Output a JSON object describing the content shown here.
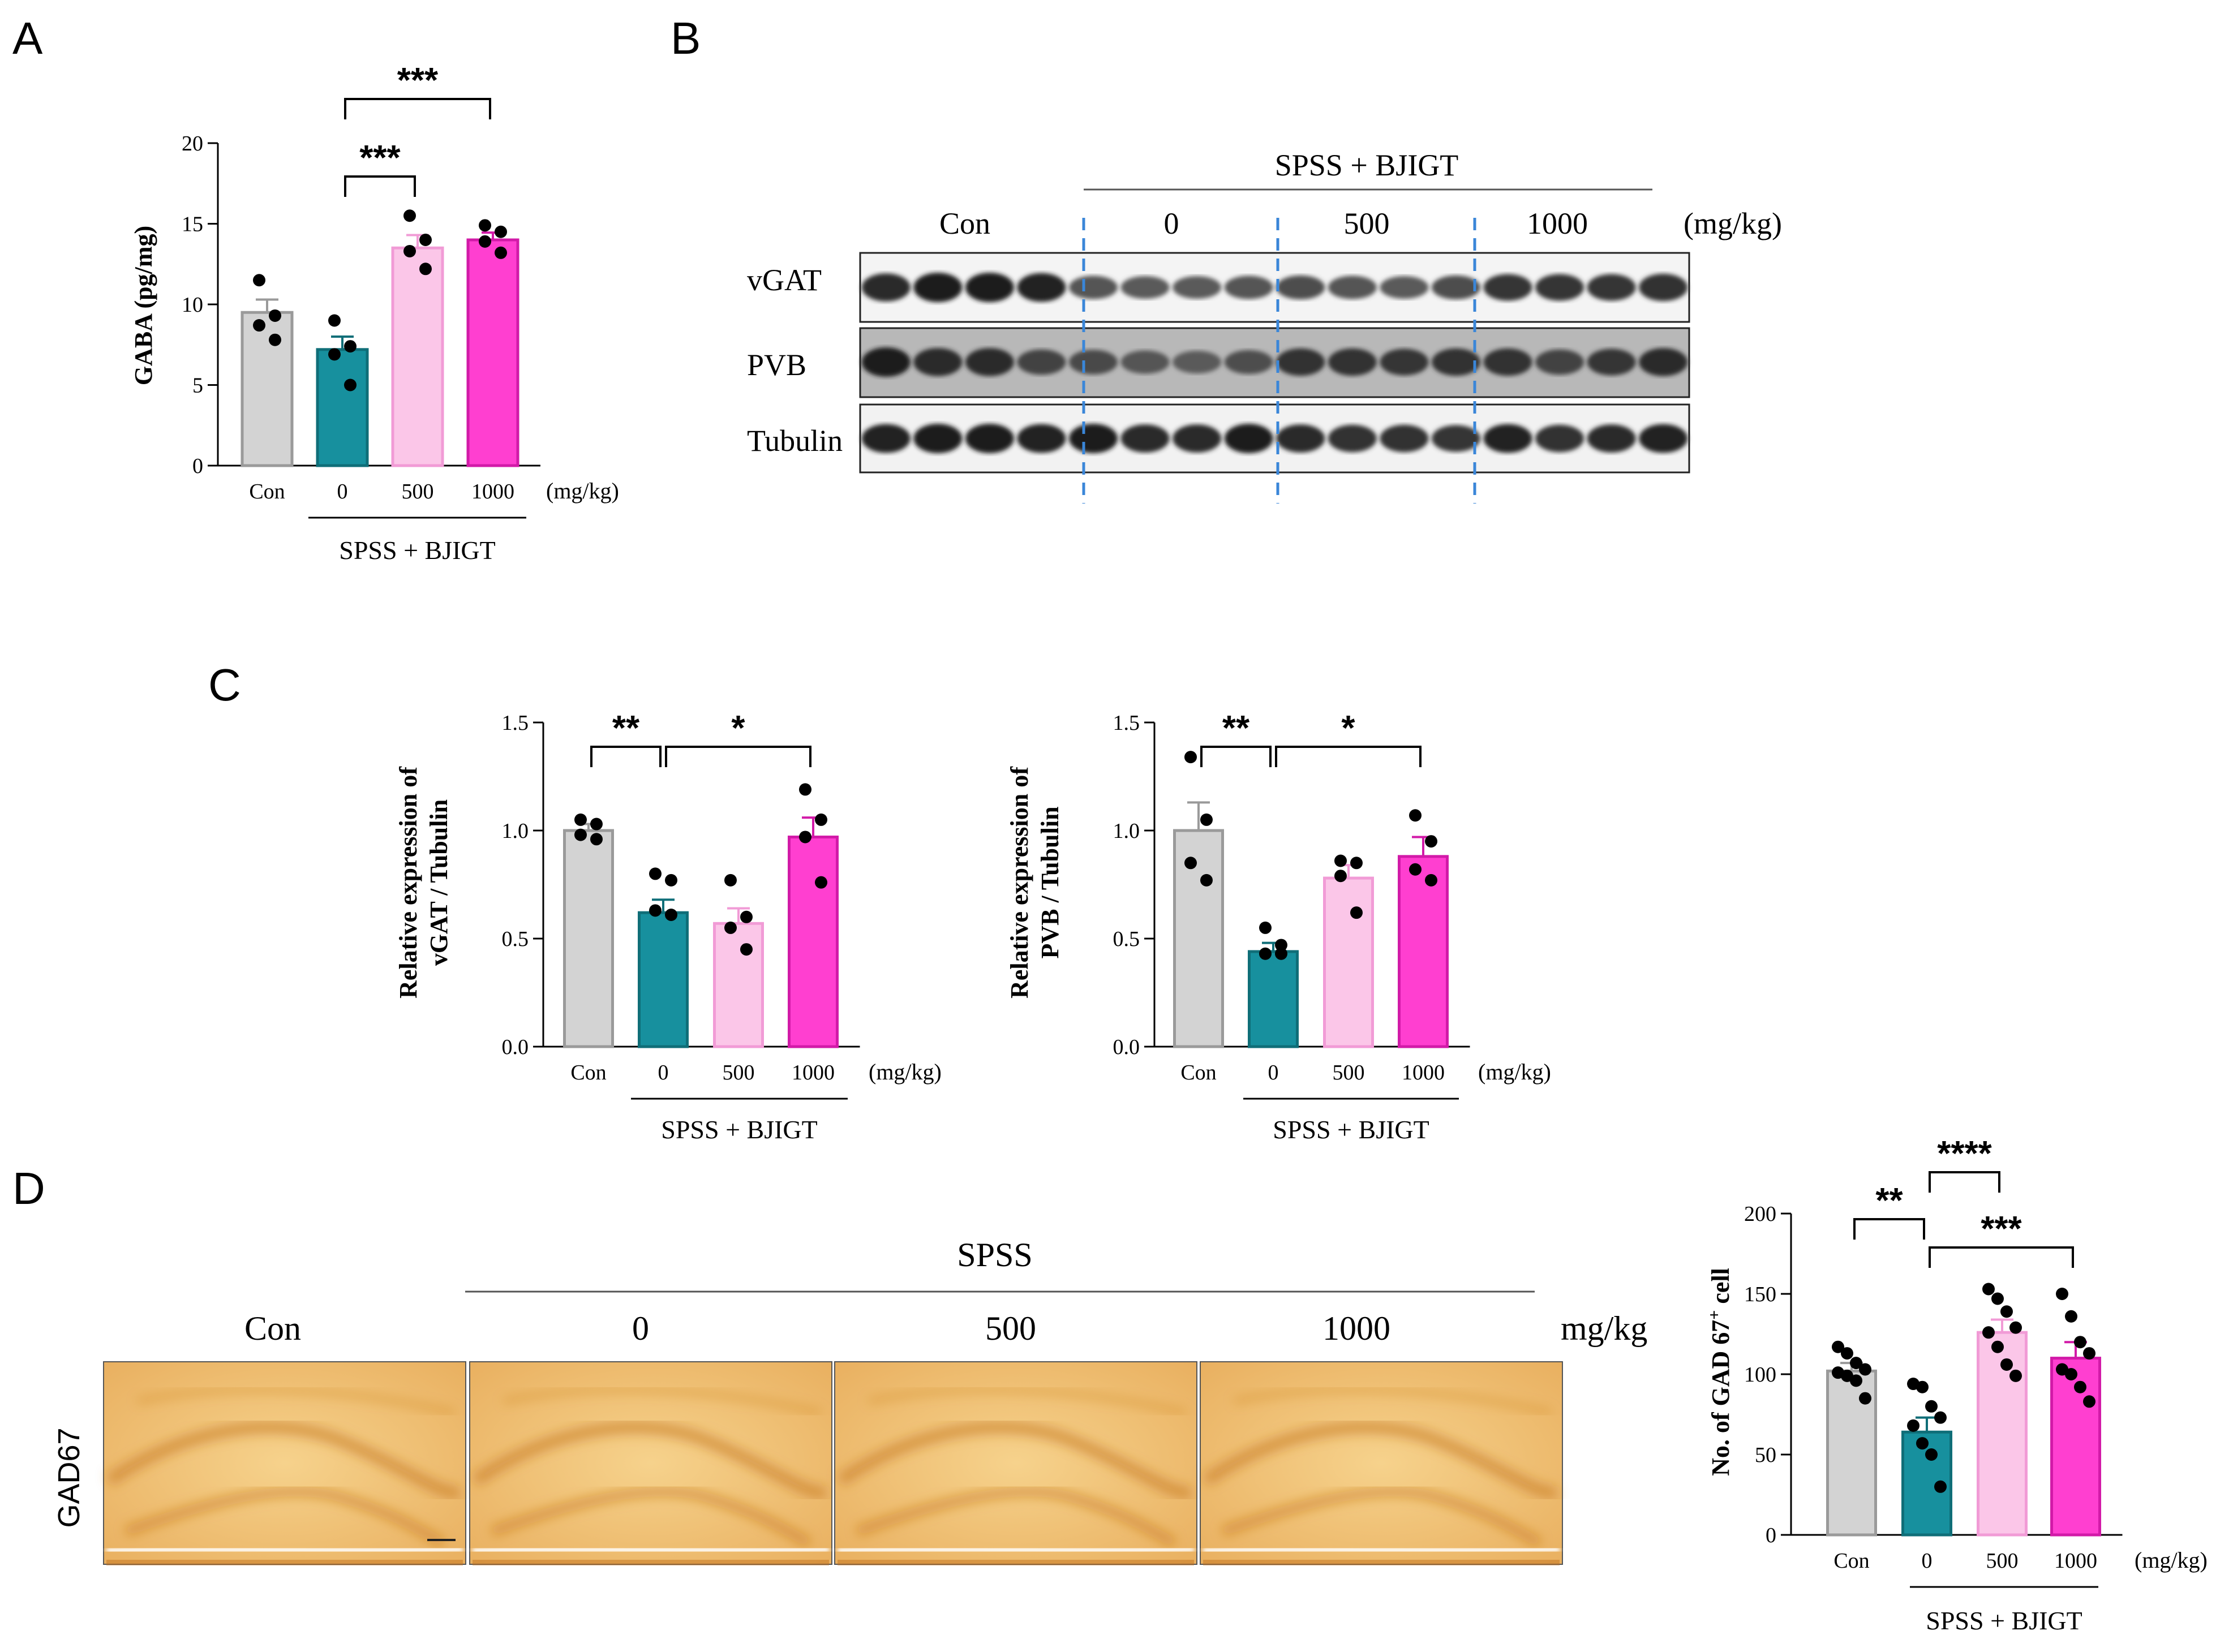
{
  "panels": {
    "A": "A",
    "B": "B",
    "C": "C",
    "D": "D"
  },
  "colors": {
    "con": "#d3d3d3",
    "con_edge": "#9a9a9a",
    "d0": "#17909e",
    "d0_edge": "#0f6e78",
    "d500": "#fbc6e8",
    "d500_edge": "#f19bd6",
    "d1000": "#ff3fd0",
    "d1000_edge": "#d21aa8",
    "divider": "#3a86d8",
    "stain_light": "#f2c67a",
    "stain_dark": "#c3721c"
  },
  "common": {
    "categories": [
      "Con",
      "0",
      "500",
      "1000"
    ],
    "unit": "(mg/kg)",
    "group_label": "SPSS + BJIGT"
  },
  "chart_data": [
    {
      "id": "A",
      "type": "bar",
      "title": "",
      "categories": [
        "Con",
        "0",
        "500",
        "1000"
      ],
      "values": [
        9.5,
        7.2,
        13.5,
        14.0
      ],
      "errors": [
        0.8,
        0.8,
        0.8,
        0.45
      ],
      "points": [
        [
          11.5,
          9.3,
          8.7,
          7.8
        ],
        [
          9.0,
          7.4,
          6.9,
          5.0
        ],
        [
          15.5,
          14.0,
          13.3,
          12.2
        ],
        [
          14.9,
          14.5,
          13.9,
          13.2
        ]
      ],
      "ylabel": "GABA (pg/mg)",
      "ylim": [
        0,
        20
      ],
      "yticks": [
        0,
        5,
        10,
        15,
        20
      ],
      "xunit": "(mg/kg)",
      "group_label": "SPSS + BJIGT",
      "sig": [
        {
          "from": 1,
          "to": 2,
          "label": "***"
        },
        {
          "from": 1,
          "to": 3,
          "label": "***"
        }
      ]
    },
    {
      "id": "C-vGAT",
      "type": "bar",
      "title": "",
      "categories": [
        "Con",
        "0",
        "500",
        "1000"
      ],
      "values": [
        1.0,
        0.62,
        0.57,
        0.97
      ],
      "errors": [
        0.03,
        0.06,
        0.07,
        0.09
      ],
      "points": [
        [
          1.05,
          1.03,
          0.98,
          0.96
        ],
        [
          0.8,
          0.77,
          0.63,
          0.61
        ],
        [
          0.77,
          0.6,
          0.55,
          0.45
        ],
        [
          1.19,
          1.05,
          0.97,
          0.76
        ]
      ],
      "ylabel": "Relative expression of vGAT / Tubulin",
      "ylim": [
        0,
        1.5
      ],
      "yticks": [
        "0.0",
        "0.5",
        "1.0",
        "1.5"
      ],
      "xunit": "(mg/kg)",
      "group_label": "SPSS + BJIGT",
      "sig": [
        {
          "from": 0,
          "to": 1,
          "label": "**"
        },
        {
          "from": 1,
          "to": 3,
          "label": "*"
        }
      ]
    },
    {
      "id": "C-PVB",
      "type": "bar",
      "title": "",
      "categories": [
        "Con",
        "0",
        "500",
        "1000"
      ],
      "values": [
        1.0,
        0.44,
        0.78,
        0.88
      ],
      "errors": [
        0.13,
        0.04,
        0.06,
        0.09
      ],
      "points": [
        [
          1.34,
          1.05,
          0.85,
          0.77
        ],
        [
          0.55,
          0.47,
          0.43,
          0.43
        ],
        [
          0.86,
          0.85,
          0.79,
          0.62
        ],
        [
          1.07,
          0.95,
          0.82,
          0.77
        ]
      ],
      "ylabel": "Relative expression of PVB / Tubulin",
      "ylim": [
        0,
        1.5
      ],
      "yticks": [
        "0.0",
        "0.5",
        "1.0",
        "1.5"
      ],
      "xunit": "(mg/kg)",
      "group_label": "SPSS + BJIGT",
      "sig": [
        {
          "from": 0,
          "to": 1,
          "label": "**"
        },
        {
          "from": 1,
          "to": 3,
          "label": "*"
        }
      ]
    },
    {
      "id": "D",
      "type": "bar",
      "title": "",
      "categories": [
        "Con",
        "0",
        "500",
        "1000"
      ],
      "values": [
        102,
        64,
        126,
        110
      ],
      "errors": [
        5,
        9,
        8,
        10
      ],
      "points": [
        [
          117,
          113,
          107,
          103,
          101,
          99,
          96,
          85
        ],
        [
          94,
          92,
          80,
          73,
          68,
          57,
          50,
          30
        ],
        [
          153,
          147,
          139,
          129,
          126,
          117,
          106,
          99
        ],
        [
          150,
          136,
          120,
          113,
          103,
          100,
          92,
          83
        ]
      ],
      "ylabel": "No. of GAD 67+ cell",
      "ylim": [
        0,
        200
      ],
      "yticks": [
        0,
        50,
        100,
        150,
        200
      ],
      "xunit": "(mg/kg)",
      "group_label": "SPSS + BJIGT",
      "sig": [
        {
          "from": 1,
          "to": 2,
          "label": "****"
        },
        {
          "from": 0,
          "to": 1,
          "label": "**"
        },
        {
          "from": 1,
          "to": 3,
          "label": "***"
        }
      ]
    }
  ],
  "blot": {
    "header": "SPSS + BJIGT",
    "unit": "(mg/kg)",
    "groups": [
      "Con",
      "0",
      "500",
      "1000"
    ],
    "rows": [
      "vGAT",
      "PVB",
      "Tubulin"
    ]
  },
  "histology": {
    "header": "SPSS",
    "unit": "mg/kg",
    "columns": [
      "Con",
      "0",
      "500",
      "1000"
    ],
    "row_label": "GAD67"
  }
}
